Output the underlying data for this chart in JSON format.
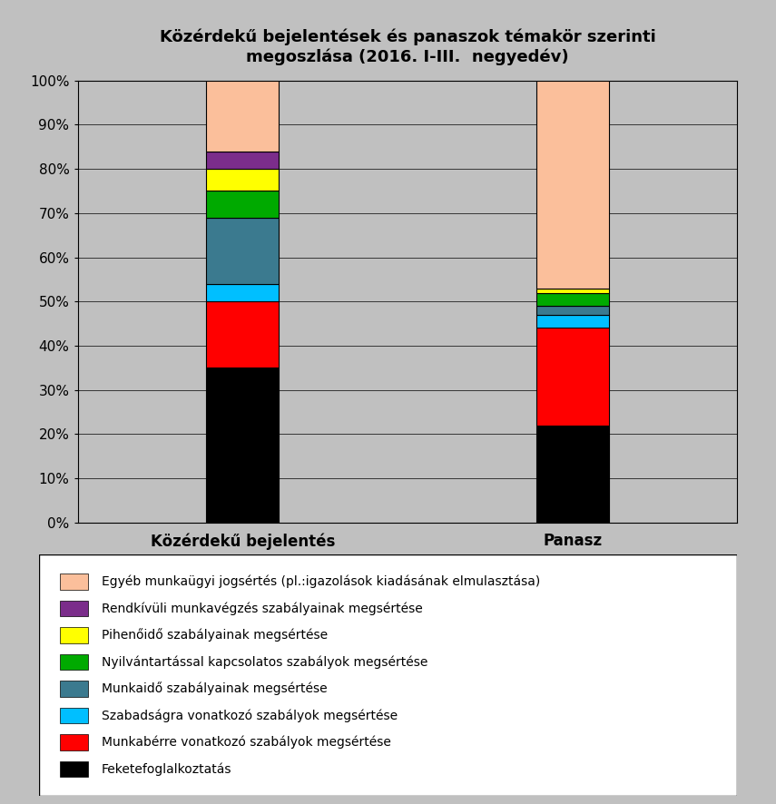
{
  "title": "Közérdekű bejelentések és panaszok témakör szerinti\nmegoszlása (2016. I-III.  negyedév)",
  "categories": [
    "Közérdekű bejelentés",
    "Panasz"
  ],
  "segments": [
    {
      "label": "Egyéb munkaügyi jogsértés (pl.:igazolások kiadásának elmulasztása)",
      "color": "#FBBF9B",
      "values": [
        16,
        47
      ]
    },
    {
      "label": "Rendkívüli munkavégzés szabályainak megsértése",
      "color": "#7B2D8B",
      "values": [
        4,
        0
      ]
    },
    {
      "label": "Pihenőidő szabályainak megsértése",
      "color": "#FFFF00",
      "values": [
        5,
        1
      ]
    },
    {
      "label": "Nyilvántartással kapcsolatos szabályok megsértése",
      "color": "#00AA00",
      "values": [
        6,
        3
      ]
    },
    {
      "label": "Munkaidő szabályainak megsértése",
      "color": "#3B7A8F",
      "values": [
        15,
        2
      ]
    },
    {
      "label": "Szabadságra vonatkozó szabályok megsértése",
      "color": "#00BFFF",
      "values": [
        4,
        3
      ]
    },
    {
      "label": "Munkabérre vonatkozó szabályok megsértése",
      "color": "#FF0000",
      "values": [
        15,
        22
      ]
    },
    {
      "label": "Feketefoglalkoztatás",
      "color": "#000000",
      "values": [
        35,
        22
      ]
    }
  ],
  "bar_width": 0.22,
  "bar_positions": [
    1,
    2
  ],
  "xlim": [
    0.5,
    2.5
  ],
  "ylim": [
    0,
    100
  ],
  "ytick_labels": [
    "0%",
    "10%",
    "20%",
    "30%",
    "40%",
    "50%",
    "60%",
    "70%",
    "80%",
    "90%",
    "100%"
  ],
  "background_color": "#C0C0C0",
  "plot_bg_color": "#C0C0C0",
  "legend_bg_color": "#FFFFFF",
  "title_fontsize": 13,
  "axis_label_fontsize": 12,
  "legend_fontsize": 10
}
